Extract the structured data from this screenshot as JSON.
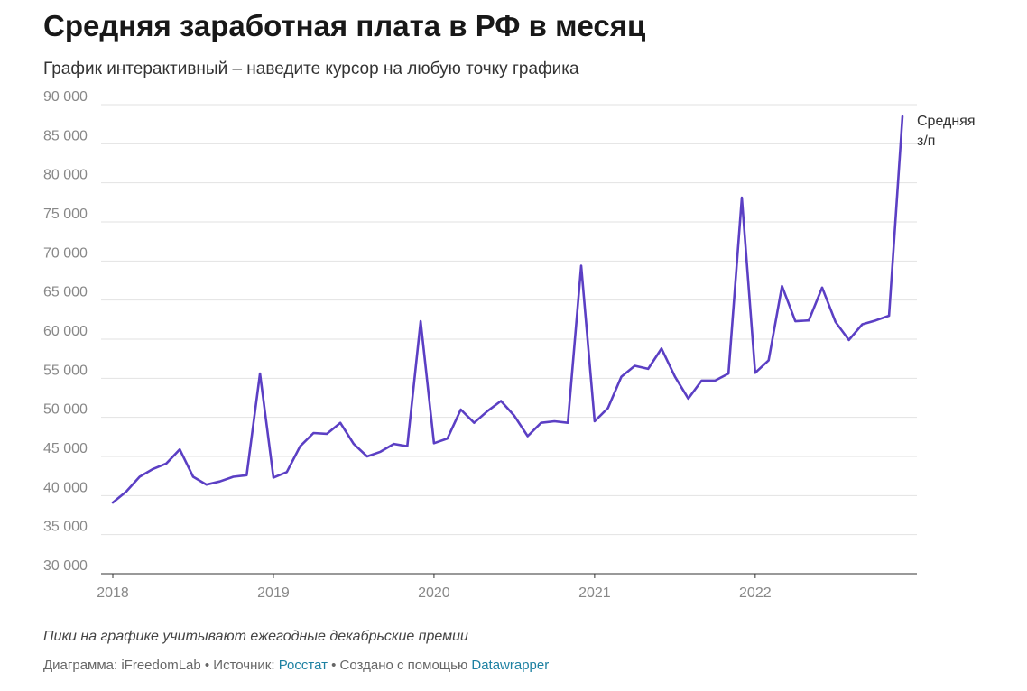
{
  "header": {
    "title": "Средняя заработная плата в РФ в месяц",
    "subtitle": "График интерактивный – наведите курсор на любую точку графика"
  },
  "note": "Пики на графике учитывают ежегодные декабрьские премии",
  "footer": {
    "prefix": "Диаграмма: iFreedomLab • Источник: ",
    "source_link": "Росстат",
    "middle": " • Создано с помощью ",
    "tool_link": "Datawrapper",
    "link_color": "#1d81a2"
  },
  "chart_data": {
    "type": "line",
    "title": "Средняя заработная плата в РФ в месяц",
    "ylim": [
      30000,
      90000
    ],
    "y_ticks": [
      30000,
      35000,
      40000,
      45000,
      50000,
      55000,
      60000,
      65000,
      70000,
      75000,
      80000,
      85000,
      90000
    ],
    "y_tick_labels": [
      "30 000",
      "35 000",
      "40 000",
      "45 000",
      "50 000",
      "55 000",
      "60 000",
      "65 000",
      "70 000",
      "75 000",
      "80 000",
      "85 000",
      "90 000"
    ],
    "x_tick_labels": [
      "2018",
      "2019",
      "2020",
      "2021",
      "2022"
    ],
    "x_tick_dates": [
      "2018-01",
      "2019-01",
      "2020-01",
      "2021-01",
      "2022-01"
    ],
    "grid": true,
    "series": [
      {
        "name": "Средняя з/п",
        "color": "#5b3fc4",
        "label_lines": [
          "Средняя",
          "з/п"
        ],
        "dates": [
          "2018-01",
          "2018-02",
          "2018-03",
          "2018-04",
          "2018-05",
          "2018-06",
          "2018-07",
          "2018-08",
          "2018-09",
          "2018-10",
          "2018-11",
          "2018-12",
          "2019-01",
          "2019-02",
          "2019-03",
          "2019-04",
          "2019-05",
          "2019-06",
          "2019-07",
          "2019-08",
          "2019-09",
          "2019-10",
          "2019-11",
          "2019-12",
          "2020-01",
          "2020-02",
          "2020-03",
          "2020-04",
          "2020-05",
          "2020-06",
          "2020-07",
          "2020-08",
          "2020-09",
          "2020-10",
          "2020-11",
          "2020-12",
          "2021-01",
          "2021-02",
          "2021-03",
          "2021-04",
          "2021-05",
          "2021-06",
          "2021-07",
          "2021-08",
          "2021-09",
          "2021-10",
          "2021-11",
          "2021-12",
          "2022-01",
          "2022-02",
          "2022-03",
          "2022-04",
          "2022-05",
          "2022-06",
          "2022-07",
          "2022-08",
          "2022-09",
          "2022-10",
          "2022-11",
          "2022-12"
        ],
        "values": [
          39100,
          40500,
          42400,
          43400,
          44100,
          45900,
          42400,
          41400,
          41800,
          42400,
          42600,
          55600,
          42300,
          43000,
          46300,
          48000,
          47900,
          49300,
          46600,
          45000,
          45600,
          46600,
          46300,
          62300,
          46700,
          47300,
          51000,
          49300,
          50800,
          52100,
          50200,
          47600,
          49300,
          49500,
          49300,
          69400,
          49500,
          51200,
          55200,
          56600,
          56200,
          58800,
          55200,
          52400,
          54700,
          54700,
          55600,
          78100,
          55700,
          57300,
          66800,
          62300,
          62400,
          66600,
          62200,
          59900,
          61900,
          62400,
          63000,
          88500
        ]
      }
    ]
  }
}
